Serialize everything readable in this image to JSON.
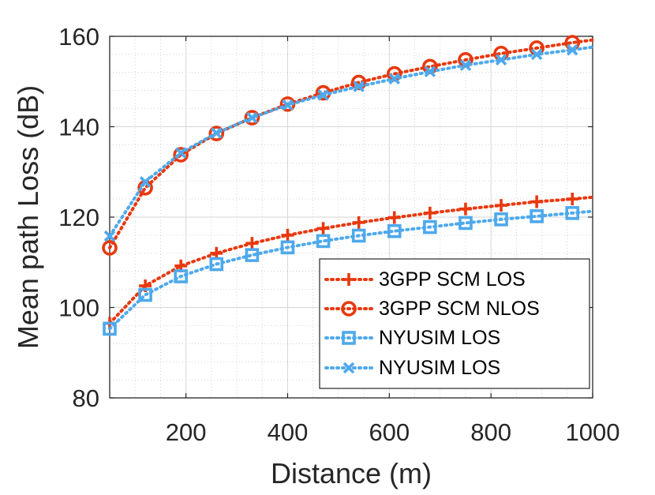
{
  "chart_data": {
    "type": "line",
    "title": "",
    "xlabel": "Distance (m)",
    "ylabel": "Mean path Loss (dB)",
    "xlim": [
      50,
      1000
    ],
    "ylim": [
      80,
      160
    ],
    "xticks": [
      200,
      400,
      600,
      800,
      1000
    ],
    "yticks": [
      80,
      100,
      120,
      140,
      160
    ],
    "grid": true,
    "minor_grid": true,
    "legend_position": "lower-right",
    "series": [
      {
        "name": "3GPP SCM LOS",
        "color": "#e8380d",
        "marker": "plus",
        "x": [
          50,
          120,
          190,
          260,
          330,
          400,
          470,
          540,
          610,
          680,
          750,
          820,
          890,
          960,
          1000
        ],
        "y": [
          96.5,
          104.8,
          109.2,
          112.0,
          114.2,
          116.0,
          117.5,
          118.8,
          119.9,
          120.9,
          121.8,
          122.6,
          123.4,
          124.0,
          124.4
        ]
      },
      {
        "name": "3GPP SCM NLOS",
        "color": "#e8380d",
        "marker": "circle",
        "x": [
          50,
          120,
          190,
          260,
          330,
          400,
          470,
          540,
          610,
          680,
          750,
          820,
          890,
          960,
          1000
        ],
        "y": [
          113.2,
          126.5,
          133.8,
          138.5,
          142.0,
          145.0,
          147.5,
          149.8,
          151.7,
          153.3,
          154.8,
          156.2,
          157.4,
          158.6,
          159.2
        ]
      },
      {
        "name": "NYUSIM LOS",
        "color": "#4ea9ec",
        "marker": "square",
        "x": [
          50,
          120,
          190,
          260,
          330,
          400,
          470,
          540,
          610,
          680,
          750,
          820,
          890,
          960,
          1000
        ],
        "y": [
          95.3,
          102.8,
          106.9,
          109.6,
          111.6,
          113.3,
          114.7,
          115.9,
          116.9,
          117.8,
          118.7,
          119.5,
          120.2,
          120.9,
          121.3
        ]
      },
      {
        "name": "NYUSIM LOS",
        "color": "#4ea9ec",
        "marker": "x",
        "x": [
          50,
          120,
          190,
          260,
          330,
          400,
          470,
          540,
          610,
          680,
          750,
          820,
          890,
          960,
          1000
        ],
        "y": [
          115.8,
          127.8,
          134.2,
          138.6,
          142.0,
          144.8,
          147.0,
          148.9,
          150.6,
          152.2,
          153.6,
          154.8,
          156.0,
          157.0,
          157.6
        ]
      }
    ]
  }
}
